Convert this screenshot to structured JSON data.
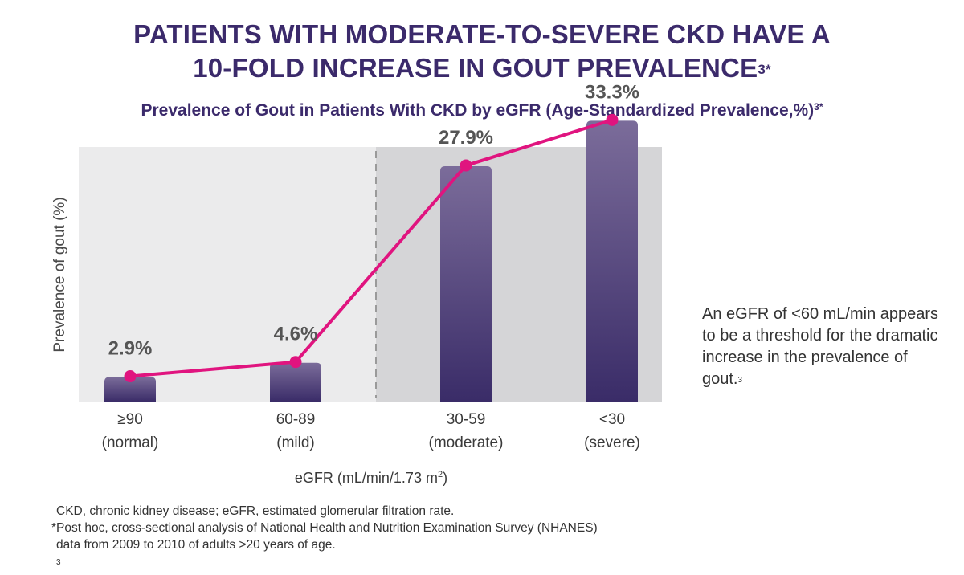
{
  "title": {
    "line1": "PATIENTS WITH MODERATE-TO-SEVERE CKD HAVE A",
    "line2": "10-FOLD INCREASE IN GOUT PREVALENCE",
    "line2_sup": "3*"
  },
  "subtitle": {
    "text": "Prevalence of Gout in Patients With CKD by eGFR (Age-Standardized Prevalence,%)",
    "sup": "3*"
  },
  "chart_data": {
    "type": "bar",
    "categories": [
      "≥90",
      "60-89",
      "30-59",
      "<30"
    ],
    "category_sublabels": [
      "(normal)",
      "(mild)",
      "(moderate)",
      "(severe)"
    ],
    "values": [
      2.9,
      4.6,
      27.9,
      33.3
    ],
    "value_labels": [
      "2.9%",
      "4.6%",
      "27.9%",
      "33.3%"
    ],
    "ylabel": "Prevalence of gout (%)",
    "xlabel": "eGFR (mL/min/1.73 m",
    "xlabel_sup": "2",
    "xlabel_end": ")",
    "ylim": [
      0,
      40
    ],
    "overlay_line": true,
    "shaded_region_categories": [
      "30-59",
      "<30"
    ],
    "colors": {
      "bar_top": "#7b6c9a",
      "bar_bottom": "#3a2c68",
      "line": "#e0147f",
      "panel_light": "#ebebec",
      "panel_dark": "#d5d5d7",
      "divider": "#9a9a9a"
    }
  },
  "side_note": {
    "text": "An eGFR of <60 mL/min appears to be a threshold for the dramatic increase in the prevalence of gout.",
    "sup": "3"
  },
  "footnotes": {
    "line1": "CKD, chronic kidney disease; eGFR, estimated glomerular filtration rate.",
    "line2": "*Post hoc, cross-sectional analysis of National Health and Nutrition Examination Survey (NHANES)",
    "line3": "data from 2009 to 2010 of adults >20 years of age.",
    "line3_sup": "3"
  }
}
